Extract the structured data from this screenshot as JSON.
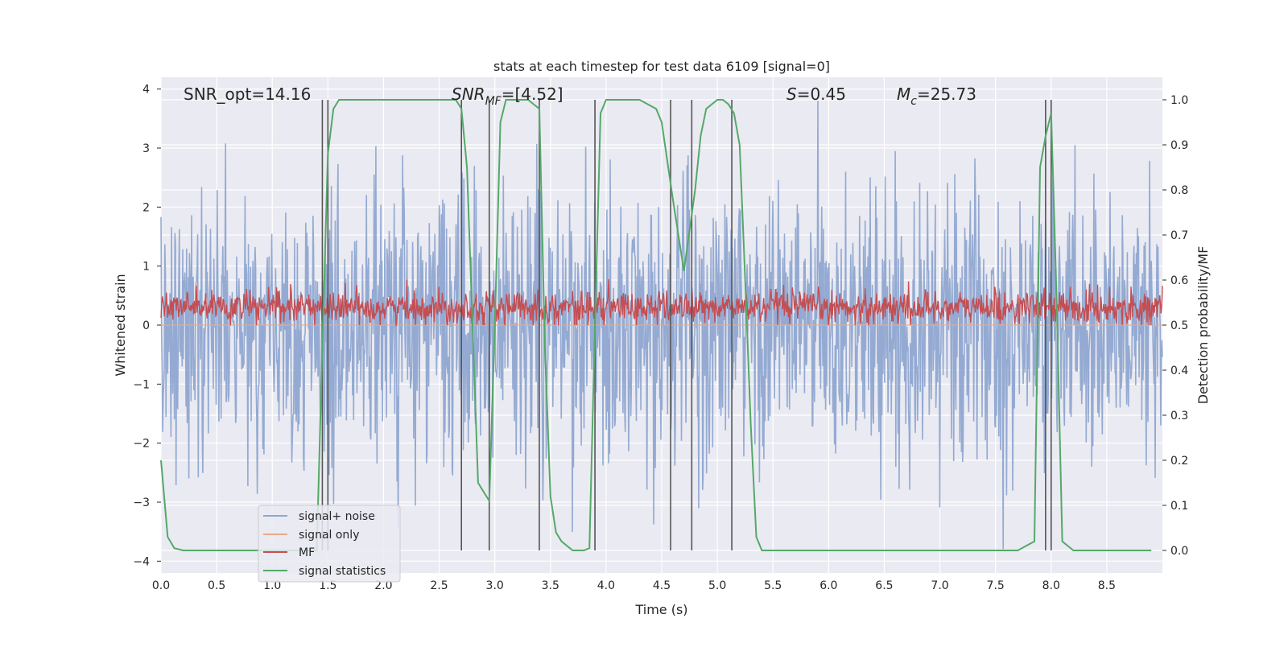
{
  "chart_data": {
    "type": "line",
    "title": "stats at each timestep for test data 6109 [signal=0]",
    "xlabel": "Time (s)",
    "ylabel_left": "Whitened strain",
    "ylabel_right": "Detection probability/MF",
    "xlim": [
      0,
      9.0
    ],
    "ylim_left": [
      -4.2,
      4.2
    ],
    "ylim_right": [
      -0.05,
      1.05
    ],
    "x_ticks": [
      "0.0",
      "0.5",
      "1.0",
      "1.5",
      "2.0",
      "2.5",
      "3.0",
      "3.5",
      "4.0",
      "4.5",
      "5.0",
      "5.5",
      "6.0",
      "6.5",
      "7.0",
      "7.5",
      "8.0",
      "8.5"
    ],
    "y_left_ticks": [
      "4",
      "3",
      "2",
      "1",
      "0",
      "−1",
      "−2",
      "−3",
      "−4"
    ],
    "y_right_ticks": [
      "1.0",
      "0.9",
      "0.8",
      "0.7",
      "0.6",
      "0.5",
      "0.4",
      "0.3",
      "0.2",
      "0.1",
      "0.0"
    ],
    "grid": true,
    "legend_position": "lower-left",
    "annotations": {
      "snr_opt": "SNR_opt=14.16",
      "snr_mf_prefix": "SNR",
      "snr_mf_sub": "MF",
      "snr_mf_value": "=[4.52]",
      "s_prefix": "S",
      "s_value": "=0.45",
      "mc_prefix": "M",
      "mc_sub": "c",
      "mc_value": "=25.73"
    },
    "series": [
      {
        "name": "signal+ noise",
        "color": "#8fa6d0",
        "axis": "left",
        "description": "noise-dominated whitened strain",
        "amplitude_range": [
          -3.9,
          3.8
        ]
      },
      {
        "name": "signal only",
        "color": "#e8a98a",
        "axis": "left",
        "values": "zero"
      },
      {
        "name": "MF",
        "color": "#c44e52",
        "axis": "left",
        "amplitude_range": [
          0.0,
          0.8
        ]
      },
      {
        "name": "signal statistics",
        "color": "#55a868",
        "axis": "right",
        "x": [
          0.0,
          0.06,
          0.12,
          0.2,
          0.5,
          1.0,
          1.4,
          1.45,
          1.5,
          1.55,
          1.6,
          2.0,
          2.5,
          2.65,
          2.7,
          2.75,
          2.8,
          2.85,
          2.9,
          2.95,
          3.0,
          3.05,
          3.1,
          3.2,
          3.3,
          3.35,
          3.4,
          3.45,
          3.5,
          3.55,
          3.6,
          3.7,
          3.8,
          3.85,
          3.9,
          3.95,
          4.0,
          4.3,
          4.45,
          4.5,
          4.6,
          4.7,
          4.8,
          4.85,
          4.9,
          5.0,
          5.05,
          5.1,
          5.15,
          5.2,
          5.25,
          5.3,
          5.35,
          5.4,
          5.6,
          6.0,
          7.0,
          7.7,
          7.85,
          7.9,
          7.95,
          8.0,
          8.05,
          8.1,
          8.15,
          8.2,
          8.3,
          8.5,
          8.9
        ],
        "values": [
          0.2,
          0.03,
          0.005,
          0.0,
          0.0,
          0.0,
          0.0,
          0.45,
          0.88,
          0.98,
          1.0,
          1.0,
          1.0,
          1.0,
          0.98,
          0.85,
          0.5,
          0.15,
          0.13,
          0.11,
          0.5,
          0.95,
          1.0,
          1.0,
          1.0,
          0.99,
          0.98,
          0.45,
          0.12,
          0.04,
          0.02,
          0.0,
          0.0,
          0.005,
          0.5,
          0.97,
          1.0,
          1.0,
          0.98,
          0.95,
          0.78,
          0.62,
          0.8,
          0.92,
          0.98,
          1.0,
          1.0,
          0.99,
          0.97,
          0.9,
          0.6,
          0.28,
          0.03,
          0.0,
          0.0,
          0.0,
          0.0,
          0.0,
          0.02,
          0.85,
          0.92,
          0.97,
          0.55,
          0.02,
          0.01,
          0.0,
          0.0,
          0.0,
          0.0
        ]
      }
    ],
    "vlines": [
      1.45,
      1.5,
      2.7,
      2.95,
      3.4,
      3.9,
      4.58,
      4.77,
      5.13,
      7.95,
      8.0
    ]
  }
}
